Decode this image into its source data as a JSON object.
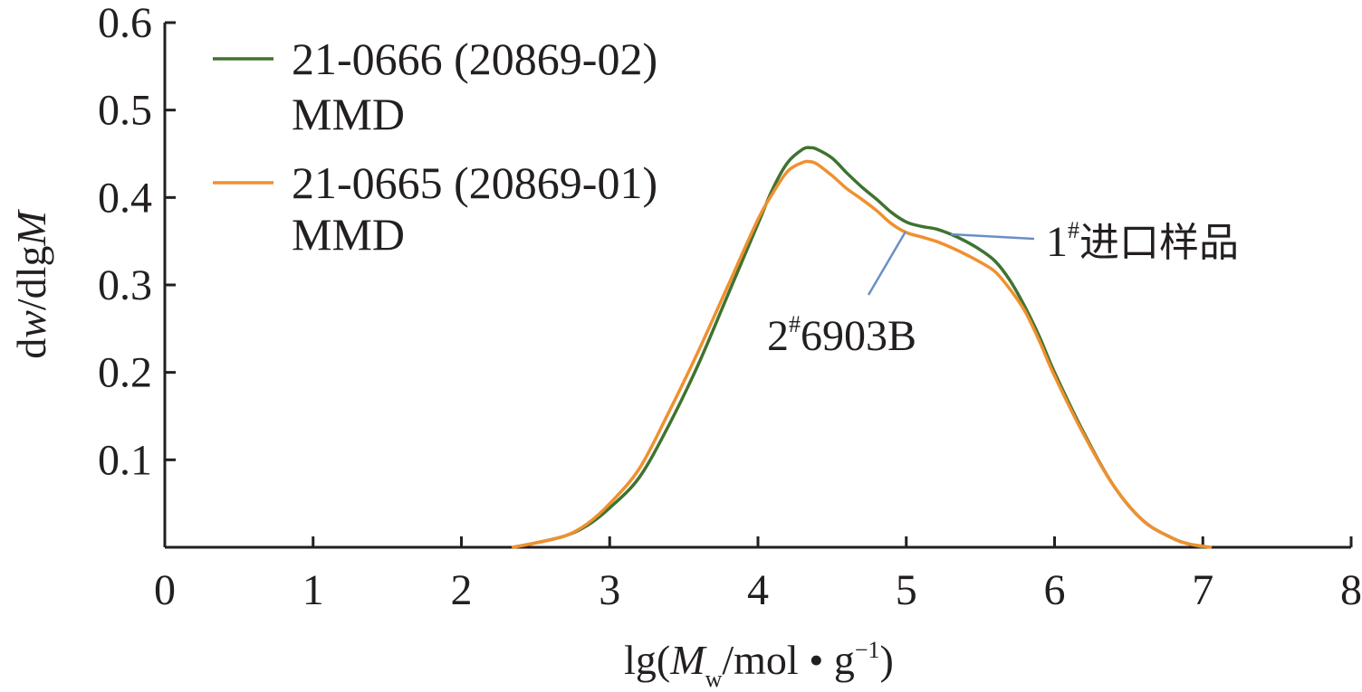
{
  "chart_data": {
    "type": "line",
    "xlabel": {
      "prefix": "lg(",
      "var": "M",
      "sub": "w",
      "suffix": "/mol • g",
      "sup": "−1",
      "close": ")"
    },
    "ylabel": {
      "pre": "d",
      "v1": "w",
      "mid": "/dlg",
      "v2": "M"
    },
    "xlim": [
      0,
      8
    ],
    "ylim": [
      0,
      0.6
    ],
    "xticks": [
      "0",
      "1",
      "2",
      "3",
      "4",
      "5",
      "6",
      "7",
      "8"
    ],
    "yticks": [
      "0.1",
      "0.2",
      "0.3",
      "0.4",
      "0.5",
      "0.6"
    ],
    "grid": false,
    "legend_position": "top-left",
    "series": [
      {
        "name_line1": "21-0666 (20869-02)",
        "name_line2": "MMD",
        "color": "#3f7330",
        "x": [
          2.35,
          2.5,
          2.7,
          2.85,
          3.0,
          3.2,
          3.4,
          3.6,
          3.8,
          4.0,
          4.1,
          4.2,
          4.3,
          4.35,
          4.4,
          4.5,
          4.6,
          4.7,
          4.8,
          4.9,
          5.0,
          5.1,
          5.2,
          5.3,
          5.4,
          5.5,
          5.6,
          5.7,
          5.8,
          5.9,
          6.0,
          6.2,
          6.4,
          6.6,
          6.8,
          6.9,
          7.0
        ],
        "y": [
          0.0,
          0.005,
          0.013,
          0.025,
          0.045,
          0.08,
          0.14,
          0.21,
          0.29,
          0.37,
          0.41,
          0.44,
          0.455,
          0.457,
          0.455,
          0.445,
          0.428,
          0.412,
          0.398,
          0.383,
          0.372,
          0.367,
          0.364,
          0.358,
          0.35,
          0.34,
          0.327,
          0.305,
          0.275,
          0.24,
          0.2,
          0.13,
          0.07,
          0.03,
          0.01,
          0.004,
          0.0
        ]
      },
      {
        "name_line1": "21-0665 (20869-01)",
        "name_line2": "MMD",
        "color": "#f0902f",
        "x": [
          2.35,
          2.5,
          2.7,
          2.85,
          3.0,
          3.2,
          3.4,
          3.6,
          3.8,
          4.0,
          4.1,
          4.2,
          4.3,
          4.35,
          4.4,
          4.5,
          4.6,
          4.7,
          4.8,
          4.9,
          5.0,
          5.1,
          5.2,
          5.3,
          5.4,
          5.5,
          5.6,
          5.7,
          5.8,
          5.9,
          6.0,
          6.2,
          6.4,
          6.6,
          6.8,
          6.9,
          7.05
        ],
        "y": [
          0.0,
          0.005,
          0.013,
          0.027,
          0.05,
          0.09,
          0.155,
          0.225,
          0.3,
          0.375,
          0.405,
          0.43,
          0.44,
          0.441,
          0.438,
          0.425,
          0.41,
          0.398,
          0.385,
          0.37,
          0.36,
          0.355,
          0.35,
          0.343,
          0.335,
          0.326,
          0.315,
          0.295,
          0.27,
          0.235,
          0.196,
          0.128,
          0.07,
          0.03,
          0.01,
          0.004,
          0.0
        ]
      }
    ],
    "annotations": [
      {
        "number": "1",
        "mark": "#",
        "text": "进口样品"
      },
      {
        "number": "2",
        "mark": "#",
        "text": "6903B"
      }
    ]
  }
}
